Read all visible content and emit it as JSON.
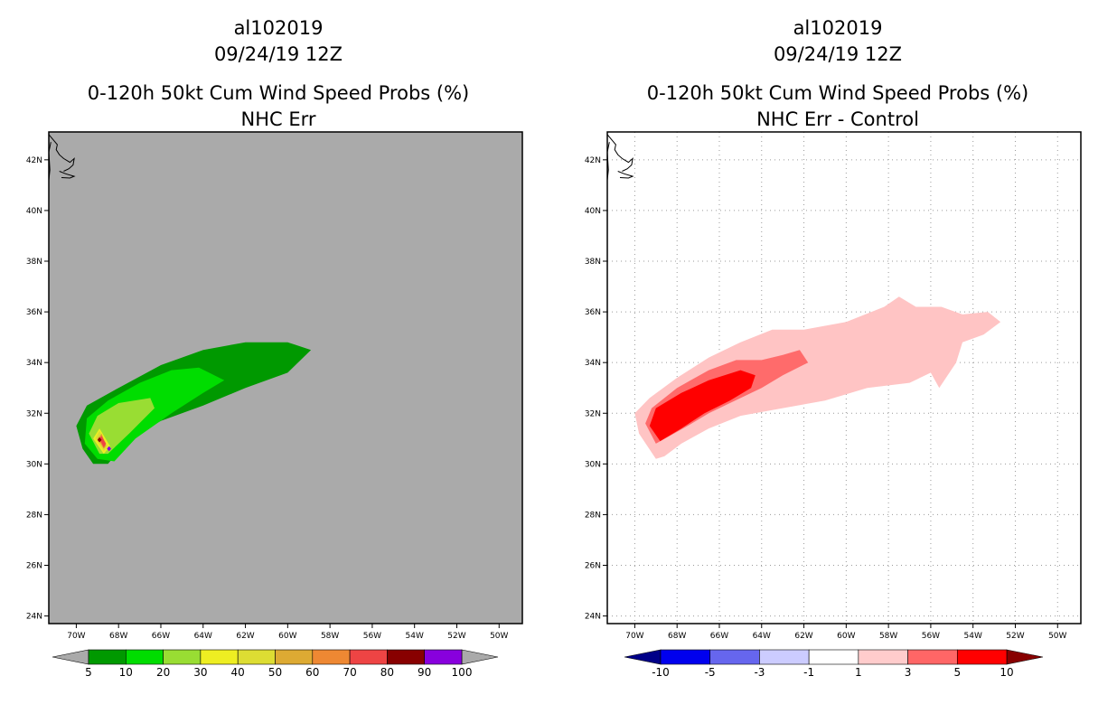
{
  "left_panel": {
    "storm_id": "al102019",
    "date": "09/24/19 12Z",
    "product": "0-120h 50kt Cum Wind Speed Probs (%)",
    "subtitle": "NHC Err",
    "background_color": "#aaaaaa"
  },
  "right_panel": {
    "storm_id": "al102019",
    "date": "09/24/19 12Z",
    "product": "0-120h 50kt Cum Wind Speed Probs (%)",
    "subtitle": "NHC Err - Control",
    "background_color": "#ffffff"
  },
  "chart_data": [
    {
      "type": "heatmap",
      "title": "0-120h 50kt Cum Wind Speed Probs (%)",
      "subtitle": "NHC Err",
      "x_ticks": [
        "70W",
        "68W",
        "66W",
        "64W",
        "62W",
        "60W",
        "58W",
        "56W",
        "54W",
        "52W",
        "50W"
      ],
      "y_ticks": [
        "24N",
        "26N",
        "28N",
        "30N",
        "32N",
        "34N",
        "36N",
        "38N",
        "40N",
        "42N"
      ],
      "xlim": [
        -71.3,
        -48.9
      ],
      "ylim": [
        23.7,
        43.1
      ],
      "grid": false,
      "colorbar": {
        "labels": [
          "5",
          "10",
          "20",
          "30",
          "40",
          "50",
          "60",
          "70",
          "80",
          "90",
          "100"
        ],
        "colors": [
          "#009900",
          "#00dd00",
          "#99dd33",
          "#eeee22",
          "#dddd33",
          "#ddaa33",
          "#ee8833",
          "#ee4444",
          "#880000",
          "#8800dd"
        ],
        "end_color": "#aaaaaa"
      },
      "contours": [
        {
          "level": 5,
          "color": "#009900",
          "points": [
            [
              -69.2,
              30.0
            ],
            [
              -69.7,
              30.6
            ],
            [
              -70.0,
              31.5
            ],
            [
              -69.5,
              32.3
            ],
            [
              -68.0,
              33.0
            ],
            [
              -66.0,
              33.9
            ],
            [
              -64.0,
              34.5
            ],
            [
              -62.0,
              34.8
            ],
            [
              -60.0,
              34.8
            ],
            [
              -58.9,
              34.5
            ],
            [
              -60.0,
              33.6
            ],
            [
              -62.0,
              33.0
            ],
            [
              -64.0,
              32.3
            ],
            [
              -66.0,
              31.7
            ],
            [
              -67.5,
              31.0
            ],
            [
              -68.5,
              30.0
            ]
          ]
        },
        {
          "level": 10,
          "color": "#00dd00",
          "points": [
            [
              -69.0,
              30.2
            ],
            [
              -69.6,
              30.8
            ],
            [
              -69.5,
              31.8
            ],
            [
              -68.5,
              32.5
            ],
            [
              -67.0,
              33.2
            ],
            [
              -65.5,
              33.7
            ],
            [
              -64.2,
              33.8
            ],
            [
              -63.0,
              33.3
            ],
            [
              -64.0,
              32.8
            ],
            [
              -65.5,
              32.0
            ],
            [
              -67.2,
              31.0
            ],
            [
              -68.2,
              30.1
            ]
          ]
        },
        {
          "level": 20,
          "color": "#99dd33",
          "points": [
            [
              -68.9,
              30.4
            ],
            [
              -69.4,
              31.2
            ],
            [
              -69.0,
              31.9
            ],
            [
              -68.0,
              32.4
            ],
            [
              -66.5,
              32.6
            ],
            [
              -66.3,
              32.2
            ],
            [
              -67.5,
              31.2
            ],
            [
              -68.5,
              30.4
            ]
          ]
        },
        {
          "level": 30,
          "color": "#eeee22",
          "points": [
            [
              -68.7,
              30.4
            ],
            [
              -69.2,
              31.0
            ],
            [
              -68.9,
              31.4
            ],
            [
              -68.4,
              30.7
            ]
          ]
        },
        {
          "level": 40,
          "color": "#dddd33",
          "points": [
            [
              -68.7,
              30.5
            ],
            [
              -69.1,
              31.0
            ],
            [
              -68.9,
              31.3
            ],
            [
              -68.5,
              30.7
            ]
          ]
        },
        {
          "level": 50,
          "color": "#ddaa33",
          "points": [
            [
              -68.7,
              30.6
            ],
            [
              -69.0,
              31.0
            ],
            [
              -68.8,
              31.2
            ],
            [
              -68.6,
              30.7
            ]
          ]
        },
        {
          "level": 60,
          "color": "#ee8833",
          "points": [
            [
              -68.7,
              30.6
            ],
            [
              -68.95,
              31.0
            ],
            [
              -68.8,
              31.15
            ],
            [
              -68.6,
              30.75
            ]
          ]
        },
        {
          "level": 70,
          "color": "#ee4444",
          "points": [
            [
              -68.7,
              30.65
            ],
            [
              -68.9,
              31.0
            ],
            [
              -68.8,
              31.1
            ],
            [
              -68.6,
              30.8
            ]
          ]
        },
        {
          "level": 80,
          "color": "#880000",
          "points": [
            [
              -69.0,
              30.95
            ],
            [
              -68.9,
              31.05
            ],
            [
              -68.8,
              30.95
            ],
            [
              -68.9,
              30.85
            ]
          ]
        },
        {
          "level": 90,
          "color": "#8800dd",
          "points": [
            [
              -68.55,
              30.6
            ],
            [
              -68.45,
              30.7
            ],
            [
              -68.35,
              30.6
            ],
            [
              -68.45,
              30.5
            ]
          ]
        }
      ]
    },
    {
      "type": "heatmap",
      "title": "0-120h 50kt Cum Wind Speed Probs (%)",
      "subtitle": "NHC Err - Control",
      "x_ticks": [
        "70W",
        "68W",
        "66W",
        "64W",
        "62W",
        "60W",
        "58W",
        "56W",
        "54W",
        "52W",
        "50W"
      ],
      "y_ticks": [
        "24N",
        "26N",
        "28N",
        "30N",
        "32N",
        "34N",
        "36N",
        "38N",
        "40N",
        "42N"
      ],
      "xlim": [
        -71.3,
        -48.9
      ],
      "ylim": [
        23.7,
        43.1
      ],
      "grid": true,
      "colorbar": {
        "labels": [
          "-10",
          "-5",
          "-3",
          "-1",
          "1",
          "3",
          "5",
          "10"
        ],
        "colors": [
          "#0000ee",
          "#6666ee",
          "#ccccff",
          "#ffffff",
          "#ffcccc",
          "#ff6666",
          "#ff0000"
        ],
        "start_color": "#000088",
        "end_color": "#880000"
      },
      "contours": [
        {
          "level": 1,
          "color": "#ffc4c4",
          "points": [
            [
              -69.0,
              30.2
            ],
            [
              -69.8,
              31.2
            ],
            [
              -70.0,
              32.0
            ],
            [
              -69.3,
              32.6
            ],
            [
              -68.0,
              33.4
            ],
            [
              -66.5,
              34.2
            ],
            [
              -65.0,
              34.8
            ],
            [
              -63.5,
              35.3
            ],
            [
              -62.0,
              35.3
            ],
            [
              -60.0,
              35.6
            ],
            [
              -58.2,
              36.2
            ],
            [
              -57.5,
              36.6
            ],
            [
              -56.7,
              36.2
            ],
            [
              -55.5,
              36.2
            ],
            [
              -54.5,
              35.9
            ],
            [
              -53.3,
              36.0
            ],
            [
              -52.7,
              35.6
            ],
            [
              -53.5,
              35.1
            ],
            [
              -54.5,
              34.8
            ],
            [
              -54.8,
              34.0
            ],
            [
              -55.6,
              33.0
            ],
            [
              -56.0,
              33.6
            ],
            [
              -57.0,
              33.2
            ],
            [
              -59.0,
              33.0
            ],
            [
              -61.0,
              32.5
            ],
            [
              -63.0,
              32.2
            ],
            [
              -65.0,
              31.9
            ],
            [
              -66.5,
              31.4
            ],
            [
              -67.8,
              30.8
            ],
            [
              -68.6,
              30.3
            ]
          ]
        },
        {
          "level": 3,
          "color": "#ff6b6b",
          "points": [
            [
              -69.0,
              30.8
            ],
            [
              -69.5,
              31.6
            ],
            [
              -69.2,
              32.2
            ],
            [
              -68.0,
              33.0
            ],
            [
              -66.5,
              33.7
            ],
            [
              -65.2,
              34.1
            ],
            [
              -64.0,
              34.1
            ],
            [
              -63.0,
              34.3
            ],
            [
              -62.2,
              34.5
            ],
            [
              -61.8,
              34.0
            ],
            [
              -63.0,
              33.5
            ],
            [
              -64.0,
              33.0
            ],
            [
              -65.5,
              32.4
            ],
            [
              -66.5,
              32.0
            ],
            [
              -67.5,
              31.5
            ]
          ]
        },
        {
          "level": 5,
          "color": "#ff0000",
          "points": [
            [
              -68.8,
              30.9
            ],
            [
              -69.3,
              31.5
            ],
            [
              -69.0,
              32.2
            ],
            [
              -67.8,
              32.8
            ],
            [
              -66.5,
              33.3
            ],
            [
              -65.0,
              33.7
            ],
            [
              -64.3,
              33.5
            ],
            [
              -64.5,
              33.0
            ],
            [
              -65.5,
              32.5
            ],
            [
              -66.7,
              32.0
            ],
            [
              -67.8,
              31.4
            ]
          ]
        }
      ]
    }
  ]
}
